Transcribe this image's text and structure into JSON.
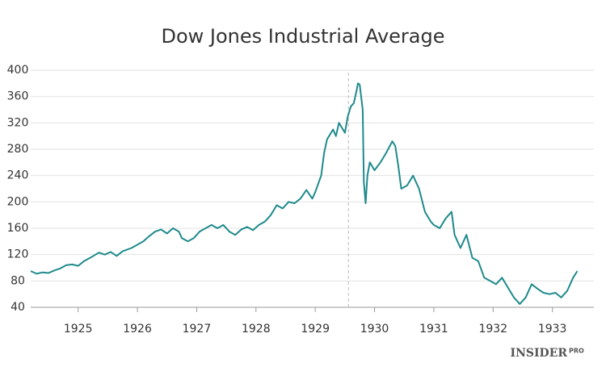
{
  "chart_data": {
    "type": "line",
    "title": "Dow Jones Industrial Average",
    "x": [
      1924.2,
      1924.3,
      1924.4,
      1924.5,
      1924.6,
      1924.7,
      1924.8,
      1924.9,
      1925.0,
      1925.1,
      1925.2,
      1925.35,
      1925.45,
      1925.55,
      1925.65,
      1925.75,
      1925.9,
      1926.0,
      1926.1,
      1926.2,
      1926.3,
      1926.4,
      1926.5,
      1926.6,
      1926.7,
      1926.75,
      1926.85,
      1926.95,
      1927.05,
      1927.15,
      1927.25,
      1927.35,
      1927.45,
      1927.55,
      1927.65,
      1927.75,
      1927.85,
      1927.95,
      1928.05,
      1928.15,
      1928.25,
      1928.35,
      1928.45,
      1928.55,
      1928.65,
      1928.75,
      1928.85,
      1928.95,
      1929.0,
      1929.1,
      1929.15,
      1929.2,
      1929.3,
      1929.35,
      1929.4,
      1929.5,
      1929.55,
      1929.6,
      1929.65,
      1929.7,
      1929.72,
      1929.75,
      1929.8,
      1929.82,
      1929.85,
      1929.88,
      1929.92,
      1930.0,
      1930.1,
      1930.2,
      1930.3,
      1930.35,
      1930.4,
      1930.45,
      1930.55,
      1930.65,
      1930.75,
      1930.85,
      1930.95,
      1931.0,
      1931.1,
      1931.2,
      1931.3,
      1931.35,
      1931.45,
      1931.55,
      1931.65,
      1931.75,
      1931.85,
      1931.95,
      1932.05,
      1932.15,
      1932.25,
      1932.35,
      1932.45,
      1932.55,
      1932.65,
      1932.75,
      1932.85,
      1932.95,
      1933.05,
      1933.15,
      1933.25,
      1933.35,
      1933.42
    ],
    "series": [
      {
        "name": "Dow Jones Industrial Average",
        "color": "#1f8a8c",
        "values": [
          95,
          91,
          93,
          92,
          96,
          99,
          104,
          105,
          103,
          110,
          115,
          123,
          120,
          124,
          118,
          125,
          130,
          135,
          140,
          148,
          155,
          158,
          152,
          160,
          155,
          145,
          140,
          145,
          155,
          160,
          165,
          160,
          165,
          155,
          150,
          158,
          162,
          157,
          165,
          170,
          180,
          195,
          190,
          200,
          198,
          205,
          218,
          205,
          215,
          240,
          275,
          295,
          310,
          300,
          320,
          305,
          330,
          345,
          350,
          370,
          380,
          378,
          340,
          230,
          198,
          240,
          260,
          248,
          260,
          275,
          292,
          285,
          255,
          220,
          225,
          240,
          220,
          185,
          170,
          165,
          160,
          175,
          185,
          150,
          130,
          150,
          115,
          110,
          85,
          80,
          75,
          85,
          70,
          55,
          45,
          55,
          75,
          68,
          62,
          60,
          62,
          55,
          65,
          85,
          95
        ]
      }
    ],
    "xlim": [
      1924.2,
      1933.7
    ],
    "ylim": [
      40,
      400
    ],
    "xticks": [
      1925,
      1926,
      1927,
      1928,
      1929,
      1930,
      1931,
      1932,
      1933
    ],
    "yticks": [
      40,
      80,
      120,
      160,
      200,
      240,
      280,
      320,
      360,
      400
    ],
    "grid": true,
    "vline": 1929.56,
    "source": "INSIDER",
    "source_suffix": "PRO"
  }
}
